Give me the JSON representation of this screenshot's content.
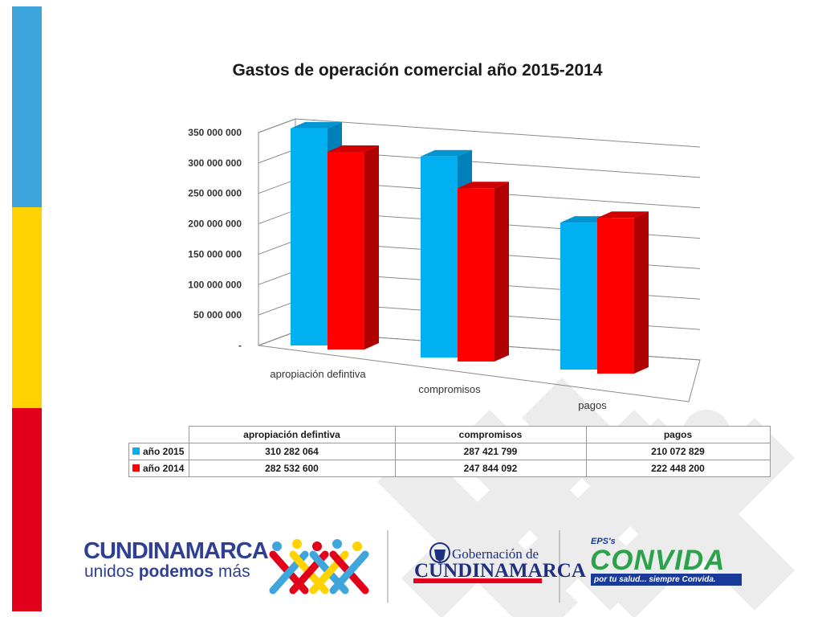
{
  "chart_data": {
    "type": "bar",
    "title": "Gastos de operación comercial año 2015-2014",
    "categories": [
      "apropiación defintiva",
      "compromisos",
      "pagos"
    ],
    "series": [
      {
        "name": "año 2015",
        "color": "#00b0f0",
        "values": [
          310282064,
          287421799,
          210072829
        ]
      },
      {
        "name": "año 2014",
        "color": "#ff0000",
        "values": [
          282532600,
          247844092,
          222448200
        ]
      }
    ],
    "ylim": [
      0,
      350000000
    ],
    "yticks": [
      "-",
      "50 000 000",
      "100 000 000",
      "150 000 000",
      "200 000 000",
      "250 000 000",
      "300 000 000",
      "350 000 000"
    ],
    "grid": true,
    "legend": "data table below chart",
    "style": "3D clustered columns"
  },
  "table": {
    "headers": [
      "apropiación defintiva",
      "compromisos",
      "pagos"
    ],
    "rows": [
      {
        "label": "año 2015",
        "values": [
          "310 282 064",
          "287 421 799",
          "210 072 829"
        ]
      },
      {
        "label": "año 2014",
        "values": [
          "282 532 600",
          "247 844 092",
          "222 448 200"
        ]
      }
    ]
  },
  "logos": {
    "cundinamarca": {
      "title": "CUNDINAMARCA",
      "sub_plain1": "unidos ",
      "sub_bold": "podemos",
      "sub_plain2": " más"
    },
    "gobernacion": {
      "line1": "Gobernación de",
      "line2": "CUNDINAMARCA"
    },
    "convida": {
      "top": "EPS's",
      "main": "CONVIDA",
      "slogan": "por tu salud... siempre Convida."
    }
  },
  "colors": {
    "stripe_blue": "#3ea5dd",
    "stripe_yellow": "#ffd200",
    "stripe_red": "#e2001a"
  }
}
